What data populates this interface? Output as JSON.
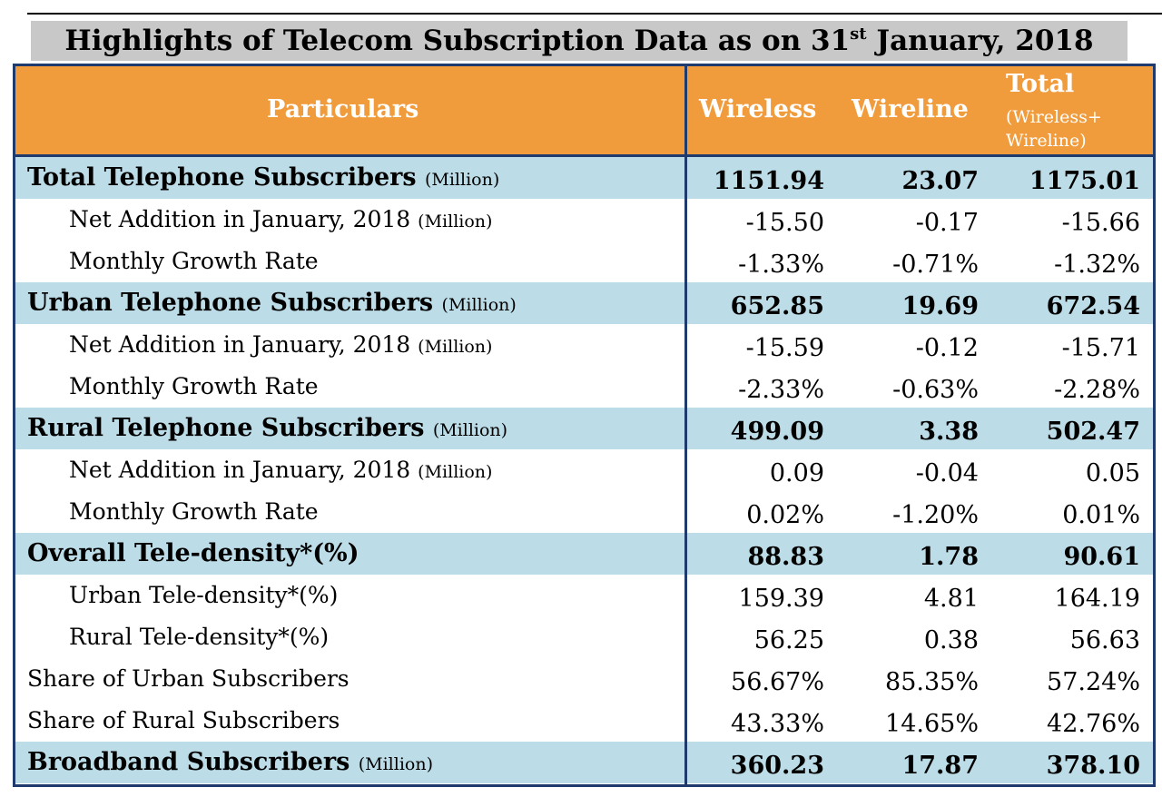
{
  "title": {
    "text": "Highlights of Telecom Subscription Data as on 31",
    "sup": "st",
    "after": " January, 2018"
  },
  "header": {
    "particulars": "Particulars",
    "wireless": "Wireless",
    "wireline": "Wireline",
    "total": "Total",
    "total_sub": "(Wireless+ Wireline)"
  },
  "rows": [
    {
      "label": "Total Telephone Subscribers",
      "unit": "(Million)",
      "wireless": "1151.94",
      "wireline": "23.07",
      "total": "1175.01"
    },
    {
      "label": "Net Addition in January, 2018",
      "unit": "(Million)",
      "wireless": "-15.50",
      "wireline": "-0.17",
      "total": "-15.66"
    },
    {
      "label": "Monthly Growth Rate",
      "unit": "",
      "wireless": "-1.33%",
      "wireline": "-0.71%",
      "total": "-1.32%"
    },
    {
      "label": "Urban Telephone Subscribers",
      "unit": "(Million)",
      "wireless": "652.85",
      "wireline": "19.69",
      "total": "672.54"
    },
    {
      "label": "Net Addition in January, 2018",
      "unit": "(Million)",
      "wireless": "-15.59",
      "wireline": "-0.12",
      "total": "-15.71"
    },
    {
      "label": "Monthly Growth Rate",
      "unit": "",
      "wireless": "-2.33%",
      "wireline": "-0.63%",
      "total": "-2.28%"
    },
    {
      "label": "Rural Telephone Subscribers",
      "unit": "(Million)",
      "wireless": "499.09",
      "wireline": "3.38",
      "total": "502.47"
    },
    {
      "label": "Net Addition in January, 2018",
      "unit": "(Million)",
      "wireless": "0.09",
      "wireline": "-0.04",
      "total": "0.05"
    },
    {
      "label": "Monthly Growth Rate",
      "unit": "",
      "wireless": "0.02%",
      "wireline": "-1.20%",
      "total": "0.01%"
    },
    {
      "label": "Overall Tele-density*(%)",
      "unit": "",
      "wireless": "88.83",
      "wireline": "1.78",
      "total": "90.61"
    },
    {
      "label": "Urban Tele-density*(%)",
      "unit": "",
      "wireless": "159.39",
      "wireline": "4.81",
      "total": "164.19"
    },
    {
      "label": "Rural Tele-density*(%)",
      "unit": "",
      "wireless": "56.25",
      "wireline": "0.38",
      "total": "56.63"
    },
    {
      "label": "Share of Urban Subscribers",
      "unit": "",
      "wireless": "56.67%",
      "wireline": "85.35%",
      "total": "57.24%"
    },
    {
      "label": "Share of Rural Subscribers",
      "unit": "",
      "wireless": "43.33%",
      "wireline": "14.65%",
      "total": "42.76%"
    },
    {
      "label": "Broadband Subscribers",
      "unit": "(Million)",
      "wireless": "360.23",
      "wireline": "17.87",
      "total": "378.10"
    }
  ],
  "colors": {
    "header_bg": "#f19c3c",
    "band_bg": "#bcdde8",
    "border": "#1f3b6e",
    "title_bg": "#c8c8c8"
  }
}
